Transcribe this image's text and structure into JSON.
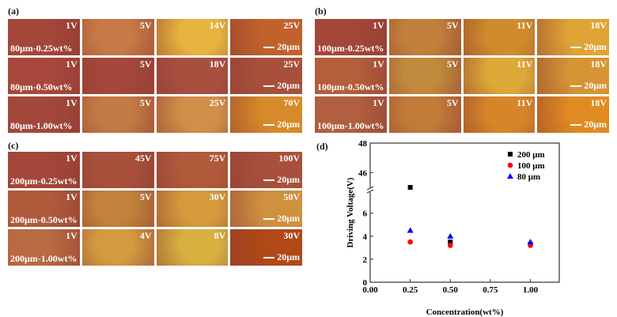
{
  "panels": [
    {
      "label": "(a)",
      "scale": "20μm",
      "rows": [
        {
          "name": "80μm-0.25wt%",
          "voltages": [
            "1V",
            "5V",
            "14V",
            "25V"
          ],
          "tones": [
            "#a4463a",
            "#c77a45",
            "#e8b440",
            "#c0622c"
          ]
        },
        {
          "name": "80μm-0.50wt%",
          "voltages": [
            "1V",
            "5V",
            "18V",
            "25V"
          ],
          "tones": [
            "#a8483c",
            "#a4463a",
            "#a85040",
            "#a8503c"
          ]
        },
        {
          "name": "80μm-1.00wt%",
          "voltages": [
            "1V",
            "5V",
            "25V",
            "70V"
          ],
          "tones": [
            "#a4473b",
            "#c47a44",
            "#cf8f48",
            "#d78a2a"
          ]
        }
      ]
    },
    {
      "label": "(b)",
      "scale": "20μm",
      "rows": [
        {
          "name": "100μm-0.25wt%",
          "voltages": [
            "1V",
            "5V",
            "11V",
            "18V"
          ],
          "tones": [
            "#a4463a",
            "#c2803c",
            "#d08c2c",
            "#e0a436"
          ]
        },
        {
          "name": "100μm-0.50wt%",
          "voltages": [
            "1V",
            "5V",
            "11V",
            "18V"
          ],
          "tones": [
            "#b45e3c",
            "#c28a3c",
            "#dca838",
            "#d69434"
          ]
        },
        {
          "name": "100μm-1.00wt%",
          "voltages": [
            "1V",
            "5V",
            "11V",
            "18V"
          ],
          "tones": [
            "#b06040",
            "#c27a38",
            "#d68628",
            "#e08a22"
          ]
        }
      ]
    },
    {
      "label": "(c)",
      "scale": "20μm",
      "rows": [
        {
          "name": "200μm-0.25wt%",
          "voltages": [
            "1V",
            "45V",
            "75V",
            "100V"
          ],
          "tones": [
            "#a4463a",
            "#a8503c",
            "#b05a3c",
            "#a8503c"
          ]
        },
        {
          "name": "200μm-0.50wt%",
          "voltages": [
            "1V",
            "5V",
            "30V",
            "50V"
          ],
          "tones": [
            "#b05a3c",
            "#c2823c",
            "#d49a3c",
            "#cf9040"
          ]
        },
        {
          "name": "200μm-1.00wt%",
          "voltages": [
            "1V",
            "4V",
            "8V",
            "30V"
          ],
          "tones": [
            "#b86a40",
            "#d49a40",
            "#d8b040",
            "#b04818"
          ]
        }
      ]
    }
  ],
  "chart_data": {
    "label": "(d)",
    "type": "scatter",
    "xlabel": "Concentration(wt%)",
    "ylabel": "Driving Voltage(V)",
    "xlim": [
      0,
      1.18
    ],
    "ylim_lower": [
      0,
      7.7
    ],
    "ylim_upper": [
      45,
      48
    ],
    "xticks": [
      "0.00",
      "0.25",
      "0.50",
      "0.75",
      "1.00"
    ],
    "yticks_lower": [
      "0",
      "2",
      "4",
      "6"
    ],
    "yticks_upper": [
      "46",
      "48"
    ],
    "legend_position": "top-right",
    "series": [
      {
        "name": "200 μm",
        "marker": "square",
        "color": "#000000",
        "x": [
          0.25,
          0.5,
          1.0
        ],
        "y": [
          45,
          3.5,
          3.3
        ]
      },
      {
        "name": "100 μm",
        "marker": "circle",
        "color": "#ff0000",
        "x": [
          0.25,
          0.5,
          1.0
        ],
        "y": [
          3.5,
          3.2,
          3.2
        ]
      },
      {
        "name": "80 μm",
        "marker": "triangle",
        "color": "#0000ff",
        "x": [
          0.25,
          0.5,
          1.0
        ],
        "y": [
          4.5,
          4.0,
          3.5
        ]
      }
    ]
  }
}
